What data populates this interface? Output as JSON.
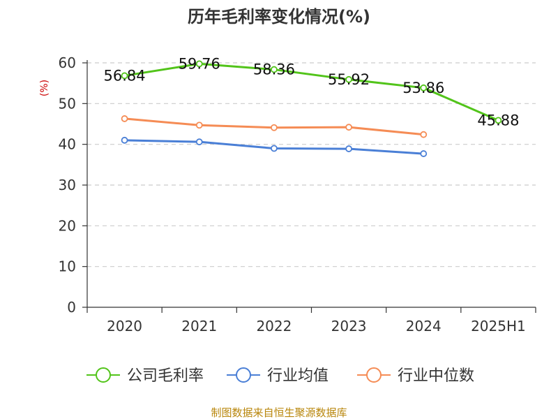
{
  "chart_data": {
    "type": "line",
    "title": "历年毛利率变化情况(%)",
    "ylabel": "(%)",
    "xlabel": "",
    "categories": [
      "2020",
      "2021",
      "2022",
      "2023",
      "2024",
      "2025H1"
    ],
    "ylim": [
      0,
      60
    ],
    "yticks": [
      0,
      10,
      20,
      30,
      40,
      50,
      60
    ],
    "grid": true,
    "legend_position": "bottom",
    "series": [
      {
        "name": "公司毛利率",
        "color": "#52c41a",
        "values": [
          56.84,
          59.76,
          58.36,
          55.92,
          53.86,
          45.88
        ],
        "labels": [
          "56.84",
          "59.76",
          "58.36",
          "55.92",
          "53.86",
          "45.88"
        ]
      },
      {
        "name": "行业均值",
        "color": "#4a7fd6",
        "values": [
          41.0,
          40.6,
          39.0,
          38.9,
          37.7,
          null
        ]
      },
      {
        "name": "行业中位数",
        "color": "#f58c55",
        "values": [
          46.3,
          44.7,
          44.1,
          44.2,
          42.4,
          null
        ]
      }
    ],
    "source": "制图数据来自恒生聚源数据库"
  }
}
